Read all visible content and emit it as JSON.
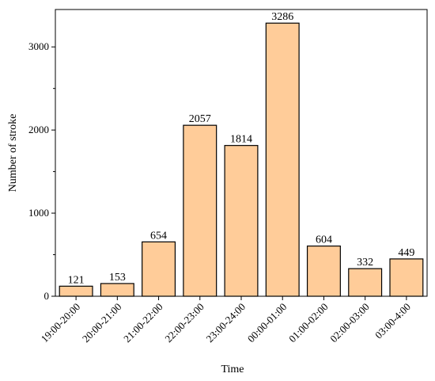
{
  "chart_data": {
    "type": "bar",
    "categories": [
      "19:00-20:00",
      "20:00-21:00",
      "21:00-22:00",
      "22:00-23:00",
      "23:00-24:00",
      "00:00-01:00",
      "01:00-02:00",
      "02:00-03:00",
      "03:00-4:00"
    ],
    "values": [
      121,
      153,
      654,
      2057,
      1814,
      3286,
      604,
      332,
      449
    ],
    "data_labels": [
      "121",
      "153",
      "654",
      "2057",
      "1814",
      "3286",
      "604",
      "332",
      "449"
    ],
    "xlabel": "Time",
    "ylabel": "Number of stroke",
    "ylim": [
      0,
      3450
    ],
    "yticks": [
      0,
      1000,
      2000,
      3000
    ],
    "ytick_labels": [
      "0",
      "1000",
      "2000",
      "3000"
    ],
    "bar_color": "#FFCC99",
    "bar_edge_color": "#000000",
    "grid": false,
    "legend": "none"
  }
}
